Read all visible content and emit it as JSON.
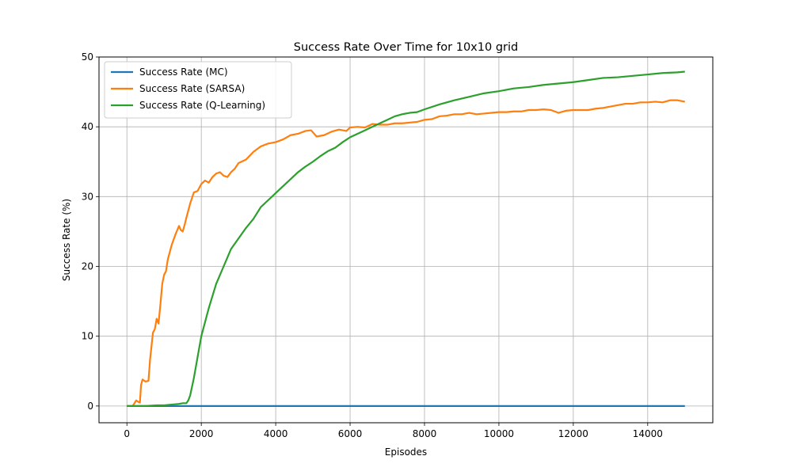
{
  "chart_data": {
    "type": "line",
    "title": "Success Rate Over Time for 10x10 grid",
    "xlabel": "Episodes",
    "ylabel": "Success Rate (%)",
    "xlim": [
      -750,
      15750
    ],
    "ylim": [
      -2.4,
      50
    ],
    "xticks": [
      0,
      2000,
      4000,
      6000,
      8000,
      10000,
      12000,
      14000
    ],
    "yticks": [
      0,
      10,
      20,
      30,
      40,
      50
    ],
    "grid": true,
    "legend_position": "top-left",
    "series": [
      {
        "name": "Success Rate (MC)",
        "color": "#1f77b4",
        "x": [
          0,
          15000
        ],
        "y": [
          0,
          0
        ]
      },
      {
        "name": "Success Rate (SARSA)",
        "color": "#ff7f0e",
        "x": [
          0,
          150,
          180,
          250,
          300,
          350,
          380,
          420,
          500,
          580,
          620,
          700,
          750,
          800,
          850,
          900,
          950,
          1000,
          1050,
          1100,
          1200,
          1300,
          1400,
          1450,
          1500,
          1550,
          1600,
          1700,
          1800,
          1900,
          2000,
          2100,
          2200,
          2300,
          2400,
          2500,
          2600,
          2700,
          2800,
          2900,
          3000,
          3200,
          3400,
          3600,
          3800,
          4000,
          4200,
          4400,
          4600,
          4800,
          4950,
          5100,
          5300,
          5500,
          5700,
          5900,
          6000,
          6200,
          6400,
          6600,
          6800,
          7000,
          7200,
          7400,
          7600,
          7800,
          8000,
          8200,
          8400,
          8600,
          8800,
          9000,
          9200,
          9400,
          9600,
          9800,
          10000,
          10200,
          10400,
          10600,
          10800,
          11000,
          11200,
          11400,
          11600,
          11800,
          12000,
          12200,
          12400,
          12600,
          12800,
          13000,
          13200,
          13400,
          13600,
          13800,
          14000,
          14200,
          14400,
          14600,
          14800,
          15000
        ],
        "y": [
          0,
          0,
          0.2,
          0.8,
          0.6,
          0.5,
          3.0,
          3.8,
          3.5,
          3.6,
          6.5,
          10.5,
          11.0,
          12.5,
          11.8,
          14.5,
          17.5,
          18.8,
          19.3,
          21.0,
          23.0,
          24.5,
          25.8,
          25.2,
          25.0,
          25.9,
          27.0,
          29.0,
          30.6,
          30.8,
          31.8,
          32.3,
          32.0,
          32.8,
          33.3,
          33.5,
          33.0,
          32.8,
          33.5,
          34.0,
          34.8,
          35.3,
          36.4,
          37.2,
          37.6,
          37.8,
          38.2,
          38.8,
          39.0,
          39.4,
          39.5,
          38.6,
          38.8,
          39.3,
          39.6,
          39.4,
          39.9,
          40.0,
          39.9,
          40.4,
          40.3,
          40.3,
          40.5,
          40.5,
          40.6,
          40.7,
          41.0,
          41.1,
          41.5,
          41.6,
          41.8,
          41.8,
          42.0,
          41.8,
          41.9,
          42.0,
          42.1,
          42.1,
          42.2,
          42.2,
          42.4,
          42.4,
          42.5,
          42.4,
          42.0,
          42.3,
          42.4,
          42.4,
          42.4,
          42.6,
          42.7,
          42.9,
          43.1,
          43.3,
          43.3,
          43.5,
          43.5,
          43.6,
          43.5,
          43.8,
          43.8,
          43.6
        ]
      },
      {
        "name": "Success Rate (Q-Learning)",
        "color": "#2ca02c",
        "x": [
          0,
          500,
          800,
          1000,
          1200,
          1400,
          1500,
          1600,
          1650,
          1700,
          1800,
          1900,
          2000,
          2100,
          2200,
          2400,
          2600,
          2800,
          3000,
          3200,
          3400,
          3600,
          3800,
          4000,
          4200,
          4400,
          4600,
          4800,
          5000,
          5200,
          5400,
          5600,
          5800,
          6000,
          6200,
          6400,
          6600,
          6800,
          7000,
          7200,
          7400,
          7600,
          7800,
          8000,
          8400,
          8800,
          9200,
          9600,
          10000,
          10400,
          10800,
          11200,
          11600,
          12000,
          12400,
          12800,
          13200,
          13600,
          14000,
          14400,
          14800,
          15000
        ],
        "y": [
          0,
          0,
          0.1,
          0.1,
          0.2,
          0.3,
          0.4,
          0.4,
          0.8,
          1.5,
          4.0,
          7.0,
          10.0,
          12.0,
          14.0,
          17.5,
          20.0,
          22.5,
          24.0,
          25.5,
          26.8,
          28.5,
          29.5,
          30.5,
          31.5,
          32.5,
          33.5,
          34.3,
          35.0,
          35.8,
          36.5,
          37.0,
          37.8,
          38.5,
          39.0,
          39.5,
          40.0,
          40.5,
          41.0,
          41.5,
          41.8,
          42.0,
          42.1,
          42.5,
          43.2,
          43.8,
          44.3,
          44.8,
          45.1,
          45.5,
          45.7,
          46.0,
          46.2,
          46.4,
          46.7,
          47.0,
          47.1,
          47.3,
          47.5,
          47.7,
          47.8,
          47.9
        ]
      }
    ]
  }
}
